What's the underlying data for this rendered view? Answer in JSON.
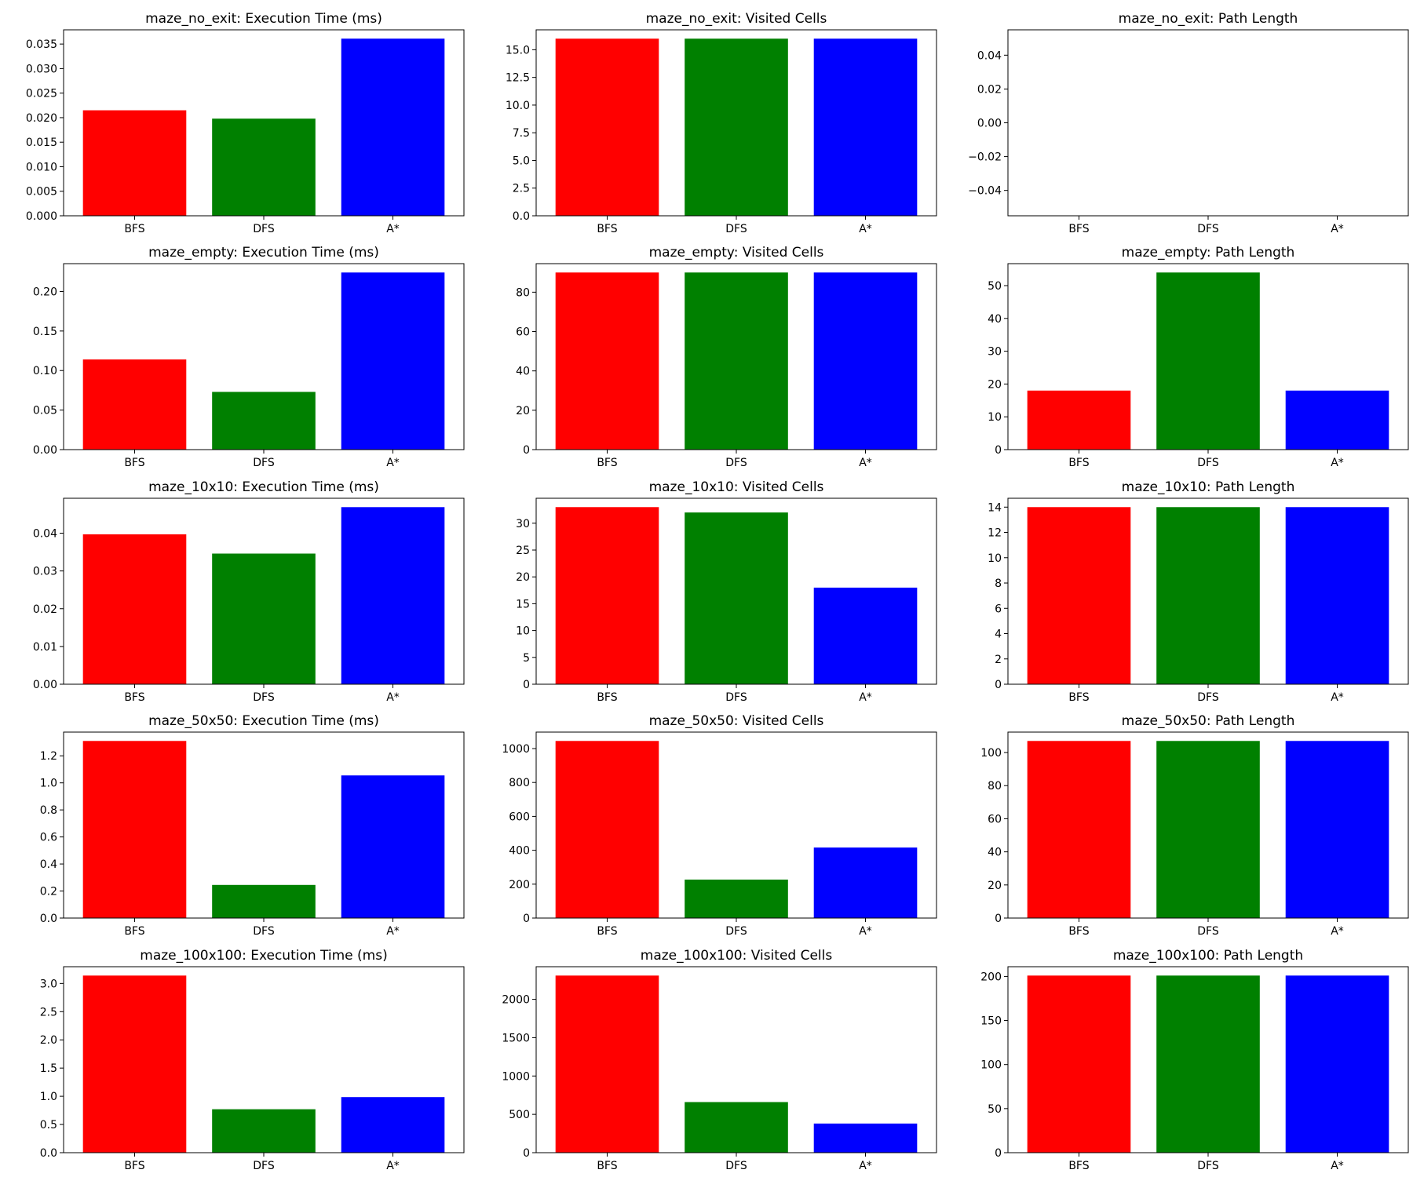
{
  "colors": {
    "bar_series": [
      "#ff0000",
      "#008000",
      "#0000ff"
    ],
    "axis": "#000000",
    "background": "#ffffff"
  },
  "chart_data": [
    {
      "type": "bar",
      "title": "maze_no_exit: Execution Time (ms)",
      "categories": [
        "BFS",
        "DFS",
        "A*"
      ],
      "values": [
        0.0215,
        0.0198,
        0.0361
      ],
      "ylim": [
        0,
        0.0379
      ],
      "yticks": [
        0.0,
        0.005,
        0.01,
        0.015,
        0.02,
        0.025,
        0.03,
        0.035
      ],
      "ytick_labels": [
        "0.000",
        "0.005",
        "0.010",
        "0.015",
        "0.020",
        "0.025",
        "0.030",
        "0.035"
      ],
      "xlabel": "",
      "ylabel": "",
      "grid": false
    },
    {
      "type": "bar",
      "title": "maze_no_exit: Visited Cells",
      "categories": [
        "BFS",
        "DFS",
        "A*"
      ],
      "values": [
        16,
        16,
        16
      ],
      "ylim": [
        0,
        16.8
      ],
      "yticks": [
        0,
        2.5,
        5,
        7.5,
        10,
        12.5,
        15
      ],
      "ytick_labels": [
        "0.0",
        "2.5",
        "5.0",
        "7.5",
        "10.0",
        "12.5",
        "15.0"
      ],
      "xlabel": "",
      "ylabel": "",
      "grid": false
    },
    {
      "type": "bar",
      "title": "maze_no_exit: Path Length",
      "categories": [
        "BFS",
        "DFS",
        "A*"
      ],
      "values": [
        0,
        0,
        0
      ],
      "ylim": [
        -0.055,
        0.055
      ],
      "yticks": [
        -0.04,
        -0.02,
        0.0,
        0.02,
        0.04
      ],
      "ytick_labels": [
        "−0.04",
        "−0.02",
        "0.00",
        "0.02",
        "0.04"
      ],
      "xlabel": "",
      "ylabel": "",
      "grid": false
    },
    {
      "type": "bar",
      "title": "maze_empty: Execution Time (ms)",
      "categories": [
        "BFS",
        "DFS",
        "A*"
      ],
      "values": [
        0.114,
        0.073,
        0.224
      ],
      "ylim": [
        0,
        0.2352
      ],
      "yticks": [
        0.0,
        0.05,
        0.1,
        0.15,
        0.2
      ],
      "ytick_labels": [
        "0.00",
        "0.05",
        "0.10",
        "0.15",
        "0.20"
      ],
      "xlabel": "",
      "ylabel": "",
      "grid": false
    },
    {
      "type": "bar",
      "title": "maze_empty: Visited Cells",
      "categories": [
        "BFS",
        "DFS",
        "A*"
      ],
      "values": [
        90,
        90,
        90
      ],
      "ylim": [
        0,
        94.5
      ],
      "yticks": [
        0,
        20,
        40,
        60,
        80
      ],
      "ytick_labels": [
        "0",
        "20",
        "40",
        "60",
        "80"
      ],
      "xlabel": "",
      "ylabel": "",
      "grid": false
    },
    {
      "type": "bar",
      "title": "maze_empty: Path Length",
      "categories": [
        "BFS",
        "DFS",
        "A*"
      ],
      "values": [
        18,
        54,
        18
      ],
      "ylim": [
        0,
        56.7
      ],
      "yticks": [
        0,
        10,
        20,
        30,
        40,
        50
      ],
      "ytick_labels": [
        "0",
        "10",
        "20",
        "30",
        "40",
        "50"
      ],
      "xlabel": "",
      "ylabel": "",
      "grid": false
    },
    {
      "type": "bar",
      "title": "maze_10x10: Execution Time (ms)",
      "categories": [
        "BFS",
        "DFS",
        "A*"
      ],
      "values": [
        0.0397,
        0.0346,
        0.0469
      ],
      "ylim": [
        0,
        0.04925
      ],
      "yticks": [
        0.0,
        0.01,
        0.02,
        0.03,
        0.04
      ],
      "ytick_labels": [
        "0.00",
        "0.01",
        "0.02",
        "0.03",
        "0.04"
      ],
      "xlabel": "",
      "ylabel": "",
      "grid": false
    },
    {
      "type": "bar",
      "title": "maze_10x10: Visited Cells",
      "categories": [
        "BFS",
        "DFS",
        "A*"
      ],
      "values": [
        33,
        32,
        18
      ],
      "ylim": [
        0,
        34.65
      ],
      "yticks": [
        0,
        5,
        10,
        15,
        20,
        25,
        30
      ],
      "ytick_labels": [
        "0",
        "5",
        "10",
        "15",
        "20",
        "25",
        "30"
      ],
      "xlabel": "",
      "ylabel": "",
      "grid": false
    },
    {
      "type": "bar",
      "title": "maze_10x10: Path Length",
      "categories": [
        "BFS",
        "DFS",
        "A*"
      ],
      "values": [
        14,
        14,
        14
      ],
      "ylim": [
        0,
        14.7
      ],
      "yticks": [
        0,
        2,
        4,
        6,
        8,
        10,
        12,
        14
      ],
      "ytick_labels": [
        "0",
        "2",
        "4",
        "6",
        "8",
        "10",
        "12",
        "14"
      ],
      "xlabel": "",
      "ylabel": "",
      "grid": false
    },
    {
      "type": "bar",
      "title": "maze_50x50: Execution Time (ms)",
      "categories": [
        "BFS",
        "DFS",
        "A*"
      ],
      "values": [
        1.31,
        0.245,
        1.055
      ],
      "ylim": [
        0,
        1.3755
      ],
      "yticks": [
        0.0,
        0.2,
        0.4,
        0.6,
        0.8,
        1.0,
        1.2
      ],
      "ytick_labels": [
        "0.0",
        "0.2",
        "0.4",
        "0.6",
        "0.8",
        "1.0",
        "1.2"
      ],
      "xlabel": "",
      "ylabel": "",
      "grid": false
    },
    {
      "type": "bar",
      "title": "maze_50x50: Visited Cells",
      "categories": [
        "BFS",
        "DFS",
        "A*"
      ],
      "values": [
        1045,
        227,
        416
      ],
      "ylim": [
        0,
        1097.25
      ],
      "yticks": [
        0,
        200,
        400,
        600,
        800,
        1000
      ],
      "ytick_labels": [
        "0",
        "200",
        "400",
        "600",
        "800",
        "1000"
      ],
      "xlabel": "",
      "ylabel": "",
      "grid": false
    },
    {
      "type": "bar",
      "title": "maze_50x50: Path Length",
      "categories": [
        "BFS",
        "DFS",
        "A*"
      ],
      "values": [
        107,
        107,
        107
      ],
      "ylim": [
        0,
        112.35
      ],
      "yticks": [
        0,
        20,
        40,
        60,
        80,
        100
      ],
      "ytick_labels": [
        "0",
        "20",
        "40",
        "60",
        "80",
        "100"
      ],
      "xlabel": "",
      "ylabel": "",
      "grid": false
    },
    {
      "type": "bar",
      "title": "maze_100x100: Execution Time (ms)",
      "categories": [
        "BFS",
        "DFS",
        "A*"
      ],
      "values": [
        3.14,
        0.77,
        0.985
      ],
      "ylim": [
        0,
        3.297
      ],
      "yticks": [
        0.0,
        0.5,
        1.0,
        1.5,
        2.0,
        2.5,
        3.0
      ],
      "ytick_labels": [
        "0.0",
        "0.5",
        "1.0",
        "1.5",
        "2.0",
        "2.5",
        "3.0"
      ],
      "xlabel": "",
      "ylabel": "",
      "grid": false
    },
    {
      "type": "bar",
      "title": "maze_100x100: Visited Cells",
      "categories": [
        "BFS",
        "DFS",
        "A*"
      ],
      "values": [
        2310,
        660,
        380
      ],
      "ylim": [
        0,
        2425.5
      ],
      "yticks": [
        0,
        500,
        1000,
        1500,
        2000
      ],
      "ytick_labels": [
        "0",
        "500",
        "1000",
        "1500",
        "2000"
      ],
      "xlabel": "",
      "ylabel": "",
      "grid": false
    },
    {
      "type": "bar",
      "title": "maze_100x100: Path Length",
      "categories": [
        "BFS",
        "DFS",
        "A*"
      ],
      "values": [
        201,
        201,
        201
      ],
      "ylim": [
        0,
        211.05
      ],
      "yticks": [
        0,
        50,
        100,
        150,
        200
      ],
      "ytick_labels": [
        "0",
        "50",
        "100",
        "150",
        "200"
      ],
      "xlabel": "",
      "ylabel": "",
      "grid": false
    }
  ]
}
